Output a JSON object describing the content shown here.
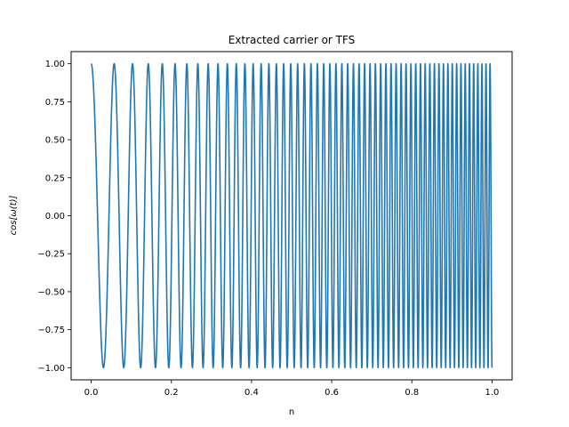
{
  "chart_data": {
    "type": "line",
    "title": "Extracted carrier or TFS",
    "xlabel": "n",
    "ylabel": "cos[ω(t)]",
    "xlim": [
      -0.05,
      1.05
    ],
    "ylim": [
      -1.08,
      1.08
    ],
    "xticks": [
      0.0,
      0.2,
      0.4,
      0.6,
      0.8,
      1.0
    ],
    "xtick_labels": [
      "0.0",
      "0.2",
      "0.4",
      "0.6",
      "0.8",
      "1.0"
    ],
    "yticks": [
      -1.0,
      -0.75,
      -0.5,
      -0.25,
      0.0,
      0.25,
      0.5,
      0.75,
      1.0
    ],
    "ytick_labels": [
      "−1.00",
      "−0.75",
      "−0.50",
      "−0.25",
      "0.00",
      "0.25",
      "0.50",
      "0.75",
      "1.00"
    ],
    "grid": false,
    "series": [
      {
        "color": "#1f77b4",
        "description": "chirp: cos of a phase whose instantaneous frequency rises from about 15 to 100 cycles per unit n; ~55 peaks over n in [0, 1]",
        "phase": {
          "f0_cycles": 15,
          "f1_cycles": 100
        },
        "x_start": 0.0,
        "x_end": 1.0,
        "y_start": 1.0,
        "y_end": 0.72
      }
    ]
  }
}
